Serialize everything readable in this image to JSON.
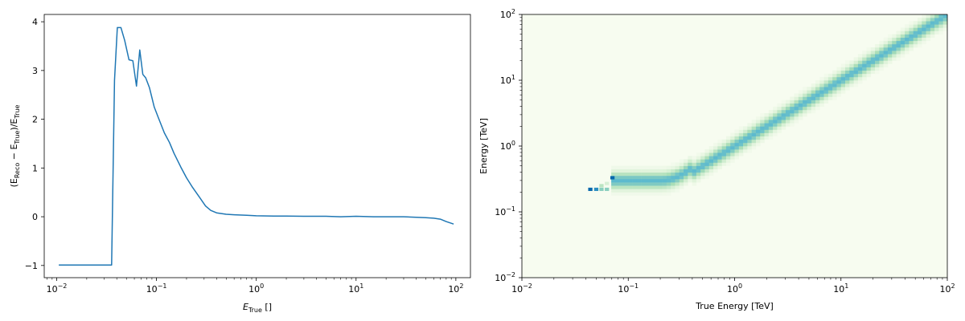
{
  "chart_data": [
    {
      "type": "line",
      "xscale": "log",
      "xlim": [
        0.0075,
        140
      ],
      "ylim": [
        -1.25,
        4.15
      ],
      "xticks": [
        {
          "value": 0.01,
          "base": "10",
          "exp": "−2"
        },
        {
          "value": 0.1,
          "base": "10",
          "exp": "−1"
        },
        {
          "value": 1,
          "base": "10",
          "exp": "0"
        },
        {
          "value": 10,
          "base": "10",
          "exp": "1"
        },
        {
          "value": 100,
          "base": "10",
          "exp": "2"
        }
      ],
      "yticks": [
        {
          "value": -1,
          "label": "−1"
        },
        {
          "value": 0,
          "label": "0"
        },
        {
          "value": 1,
          "label": "1"
        },
        {
          "value": 2,
          "label": "2"
        },
        {
          "value": 3,
          "label": "3"
        },
        {
          "value": 4,
          "label": "4"
        }
      ],
      "xlabel": {
        "main": "E",
        "sub": "True",
        "tail": " []"
      },
      "ylabel": {
        "p1": "(E",
        "s1": "Reco",
        "p2": " − E",
        "s2": "True",
        "p3": ")/E",
        "s3": "True"
      },
      "series": [
        {
          "color": "#1f77b4",
          "x": [
            0.0105,
            0.0125,
            0.015,
            0.02,
            0.025,
            0.03,
            0.0355,
            0.038,
            0.0405,
            0.044,
            0.048,
            0.053,
            0.058,
            0.063,
            0.068,
            0.073,
            0.078,
            0.085,
            0.095,
            0.105,
            0.12,
            0.135,
            0.15,
            0.175,
            0.2,
            0.23,
            0.27,
            0.31,
            0.35,
            0.4,
            0.5,
            0.6,
            0.8,
            1.0,
            1.5,
            2,
            3,
            5,
            7,
            10,
            15,
            20,
            30,
            40,
            50,
            60,
            70,
            80,
            95
          ],
          "y": [
            -0.99,
            -0.99,
            -0.99,
            -0.99,
            -0.99,
            -0.99,
            -0.99,
            2.8,
            3.88,
            3.88,
            3.62,
            3.22,
            3.2,
            2.68,
            3.42,
            2.92,
            2.85,
            2.65,
            2.25,
            2.02,
            1.72,
            1.52,
            1.3,
            1.02,
            0.8,
            0.6,
            0.4,
            0.22,
            0.13,
            0.08,
            0.05,
            0.04,
            0.03,
            0.02,
            0.015,
            0.015,
            0.01,
            0.01,
            0.0,
            0.01,
            0.0,
            0.0,
            0.0,
            -0.01,
            -0.02,
            -0.03,
            -0.05,
            -0.1,
            -0.15
          ]
        }
      ]
    },
    {
      "type": "heatmap",
      "xscale": "log",
      "yscale": "log",
      "xlim": [
        0.01,
        100
      ],
      "ylim": [
        0.01,
        100
      ],
      "xticks": [
        {
          "value": 0.01,
          "base": "10",
          "exp": "−2"
        },
        {
          "value": 0.1,
          "base": "10",
          "exp": "−1"
        },
        {
          "value": 1,
          "base": "10",
          "exp": "0"
        },
        {
          "value": 10,
          "base": "10",
          "exp": "1"
        },
        {
          "value": 100,
          "base": "10",
          "exp": "2"
        }
      ],
      "yticks": [
        {
          "value": 0.01,
          "base": "10",
          "exp": "−2"
        },
        {
          "value": 0.1,
          "base": "10",
          "exp": "−1"
        },
        {
          "value": 1,
          "base": "10",
          "exp": "0"
        },
        {
          "value": 10,
          "base": "10",
          "exp": "1"
        },
        {
          "value": 100,
          "base": "10",
          "exp": "2"
        }
      ],
      "xlabel": "True Energy [TeV]",
      "ylabel": "Energy [TeV]",
      "colormap": "GnBu",
      "colors": {
        "background": "#f7fcf0",
        "low": "#e0f3db",
        "mid": "#a8ddb5",
        "high": "#4eb3d3",
        "peak": "#0868ac"
      },
      "ridge": {
        "floor_energy": 0.3,
        "floor_start_true_energy": 0.07,
        "linear_above_true_energy": 0.4,
        "relative_width_decades": 0.09
      },
      "low_energy_cells": [
        {
          "x": 0.044,
          "y": 0.22,
          "level": 1.0
        },
        {
          "x": 0.05,
          "y": 0.22,
          "level": 0.9
        },
        {
          "x": 0.056,
          "y": 0.22,
          "level": 0.6
        },
        {
          "x": 0.056,
          "y": 0.25,
          "level": 0.4
        },
        {
          "x": 0.063,
          "y": 0.22,
          "level": 0.6
        },
        {
          "x": 0.071,
          "y": 0.33,
          "level": 1.0
        },
        {
          "x": 0.063,
          "y": 0.27,
          "level": 0.25
        }
      ]
    }
  ]
}
